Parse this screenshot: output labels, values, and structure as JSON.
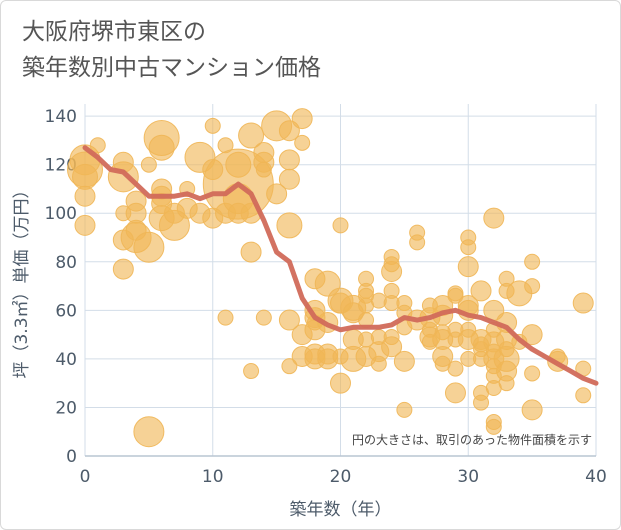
{
  "title_lines": [
    "大阪府堺市東区の",
    "築年数別中古マンション価格"
  ],
  "chart_data": {
    "type": "scatter",
    "xlabel": "築年数（年）",
    "ylabel": "坪（3.3㎡）単価（万円）",
    "xlim": [
      0,
      40
    ],
    "ylim": [
      0,
      145
    ],
    "xticks": [
      0,
      10,
      20,
      30,
      40
    ],
    "yticks": [
      0,
      20,
      40,
      60,
      80,
      100,
      120,
      140
    ],
    "grid": true,
    "annotation": "円の大きさは、取引のあった物件面積を示す",
    "colors": {
      "points": "#f0b656",
      "line": "#d16a5a",
      "grid": "#d3dde8",
      "axis_text": "#4d5b6a"
    },
    "trend_line": {
      "x": [
        0,
        1,
        2,
        3,
        4,
        5,
        6,
        7,
        8,
        9,
        10,
        11,
        12,
        13,
        14,
        15,
        16,
        17,
        18,
        19,
        20,
        21,
        22,
        23,
        24,
        25,
        26,
        27,
        28,
        29,
        30,
        31,
        32,
        33,
        34,
        35,
        36,
        37,
        38,
        39,
        40
      ],
      "y": [
        127,
        123,
        118,
        117,
        112,
        107,
        107,
        107,
        108,
        106,
        108,
        108,
        112,
        108,
        97,
        84,
        80,
        65,
        57,
        54,
        52,
        53,
        53,
        53,
        54,
        57,
        56,
        57,
        59,
        60,
        58,
        57,
        55,
        53,
        48,
        44,
        41,
        38,
        35,
        32,
        30
      ]
    },
    "points": [
      [
        0,
        122,
        3
      ],
      [
        0,
        118,
        3.5
      ],
      [
        0,
        115,
        2.5
      ],
      [
        0,
        107,
        2
      ],
      [
        0,
        95,
        2
      ],
      [
        1,
        128,
        1.5
      ],
      [
        3,
        121,
        2
      ],
      [
        3,
        115,
        3
      ],
      [
        3,
        100,
        1.5
      ],
      [
        3,
        89,
        2
      ],
      [
        3,
        77,
        2
      ],
      [
        4,
        105,
        2
      ],
      [
        4,
        100,
        2
      ],
      [
        4,
        93,
        2
      ],
      [
        4,
        90,
        3
      ],
      [
        5,
        120,
        1.5
      ],
      [
        5,
        86,
        3
      ],
      [
        5,
        10,
        3
      ],
      [
        6,
        131,
        3.5
      ],
      [
        6,
        127,
        2.5
      ],
      [
        6,
        110,
        2
      ],
      [
        6,
        104,
        2
      ],
      [
        6,
        98,
        2.5
      ],
      [
        6,
        107,
        2
      ],
      [
        7,
        95,
        3
      ],
      [
        7,
        100,
        2
      ],
      [
        8,
        102,
        2
      ],
      [
        8,
        110,
        1.5
      ],
      [
        9,
        123,
        3
      ],
      [
        9,
        100,
        2
      ],
      [
        10,
        136,
        1.5
      ],
      [
        10,
        118,
        2
      ],
      [
        10,
        98,
        2
      ],
      [
        11,
        128,
        1.5
      ],
      [
        11,
        100,
        2
      ],
      [
        11,
        57,
        1.5
      ],
      [
        12,
        120,
        2.5
      ],
      [
        12,
        112,
        7
      ],
      [
        12,
        106,
        3
      ],
      [
        12,
        100,
        2
      ],
      [
        13,
        132,
        2.5
      ],
      [
        13,
        84,
        2
      ],
      [
        13,
        35,
        1.5
      ],
      [
        13,
        100,
        2
      ],
      [
        14,
        125,
        2
      ],
      [
        14,
        121,
        2
      ],
      [
        14,
        118,
        1.5
      ],
      [
        14,
        57,
        1.5
      ],
      [
        15,
        136,
        3
      ],
      [
        15,
        108,
        2
      ],
      [
        16,
        134,
        2
      ],
      [
        16,
        122,
        2
      ],
      [
        16,
        114,
        2
      ],
      [
        16,
        95,
        2.5
      ],
      [
        16,
        56,
        2
      ],
      [
        16,
        37,
        1.5
      ],
      [
        17,
        139,
        2
      ],
      [
        17,
        129,
        1.5
      ],
      [
        17,
        50,
        2
      ],
      [
        17,
        41,
        2
      ],
      [
        18,
        73,
        2
      ],
      [
        18,
        60,
        2
      ],
      [
        18,
        57,
        2
      ],
      [
        18,
        55,
        1.5
      ],
      [
        18,
        52,
        2
      ],
      [
        18,
        42,
        2
      ],
      [
        18,
        40,
        2
      ],
      [
        19,
        71,
        2.5
      ],
      [
        19,
        55,
        2
      ],
      [
        19,
        42,
        2
      ],
      [
        19,
        40,
        2
      ],
      [
        20,
        95,
        1.5
      ],
      [
        20,
        64,
        2.5
      ],
      [
        20,
        63,
        2
      ],
      [
        20,
        41,
        1.5
      ],
      [
        20,
        30,
        2
      ],
      [
        21,
        61,
        2.5
      ],
      [
        21,
        59,
        2
      ],
      [
        21,
        48,
        2
      ],
      [
        21,
        40,
        2.5
      ],
      [
        22,
        73,
        1.5
      ],
      [
        22,
        68,
        1.5
      ],
      [
        22,
        66,
        1.5
      ],
      [
        22,
        62,
        1.5
      ],
      [
        22,
        56,
        1.5
      ],
      [
        22,
        48,
        1.5
      ],
      [
        22,
        41,
        2
      ],
      [
        23,
        64,
        1.5
      ],
      [
        23,
        49,
        1.5
      ],
      [
        23,
        43,
        2
      ],
      [
        23,
        38,
        1.5
      ],
      [
        24,
        82,
        1.5
      ],
      [
        24,
        79,
        1.5
      ],
      [
        24,
        76,
        2
      ],
      [
        24,
        68,
        1.5
      ],
      [
        24,
        63,
        1.5
      ],
      [
        24,
        49,
        1.5
      ],
      [
        24,
        45,
        2
      ],
      [
        25,
        63,
        1.5
      ],
      [
        25,
        59,
        1.5
      ],
      [
        25,
        53,
        1.5
      ],
      [
        25,
        39,
        2
      ],
      [
        25,
        19,
        1.5
      ],
      [
        26,
        92,
        1.5
      ],
      [
        26,
        88,
        1.5
      ],
      [
        26,
        56,
        2
      ],
      [
        27,
        62,
        1.5
      ],
      [
        27,
        57,
        2
      ],
      [
        27,
        52,
        1.5
      ],
      [
        27,
        49,
        2
      ],
      [
        27,
        47,
        1.5
      ],
      [
        28,
        62,
        2
      ],
      [
        28,
        58,
        2
      ],
      [
        28,
        51,
        1.5
      ],
      [
        28,
        48,
        2
      ],
      [
        28,
        41,
        2
      ],
      [
        28,
        38,
        1.5
      ],
      [
        29,
        67,
        1.5
      ],
      [
        29,
        66,
        1.5
      ],
      [
        29,
        52,
        1.5
      ],
      [
        29,
        48,
        1.5
      ],
      [
        29,
        36,
        1.5
      ],
      [
        29,
        26,
        2
      ],
      [
        30,
        90,
        1.5
      ],
      [
        30,
        86,
        1.5
      ],
      [
        30,
        78,
        2
      ],
      [
        30,
        62,
        2
      ],
      [
        30,
        60,
        2
      ],
      [
        30,
        52,
        1.5
      ],
      [
        30,
        48,
        2
      ],
      [
        30,
        40,
        1.5
      ],
      [
        31,
        68,
        2
      ],
      [
        31,
        48,
        2
      ],
      [
        31,
        46,
        1.5
      ],
      [
        31,
        44,
        1.5
      ],
      [
        31,
        40,
        1.5
      ],
      [
        31,
        26,
        1.5
      ],
      [
        31,
        22,
        1.5
      ],
      [
        32,
        98,
        2
      ],
      [
        32,
        60,
        2
      ],
      [
        32,
        52,
        1.5
      ],
      [
        32,
        47,
        2
      ],
      [
        32,
        43,
        1.5
      ],
      [
        32,
        40,
        2
      ],
      [
        32,
        37,
        1.5
      ],
      [
        32,
        33,
        1.5
      ],
      [
        32,
        28,
        1.5
      ],
      [
        32,
        14,
        1.5
      ],
      [
        32,
        12,
        1.5
      ],
      [
        33,
        73,
        1.5
      ],
      [
        33,
        68,
        1.5
      ],
      [
        33,
        55,
        2
      ],
      [
        33,
        48,
        2
      ],
      [
        33,
        44,
        1.5
      ],
      [
        33,
        40,
        2.5
      ],
      [
        33,
        35,
        2
      ],
      [
        33,
        30,
        1.5
      ],
      [
        34,
        67,
        2.5
      ],
      [
        34,
        47,
        1.5
      ],
      [
        35,
        80,
        1.5
      ],
      [
        35,
        70,
        1.5
      ],
      [
        35,
        50,
        2
      ],
      [
        35,
        34,
        1.5
      ],
      [
        35,
        19,
        2
      ],
      [
        37,
        41,
        1.5
      ],
      [
        37,
        39,
        2
      ],
      [
        39,
        63,
        2
      ],
      [
        39,
        36,
        1.5
      ],
      [
        39,
        25,
        1.5
      ]
    ]
  }
}
